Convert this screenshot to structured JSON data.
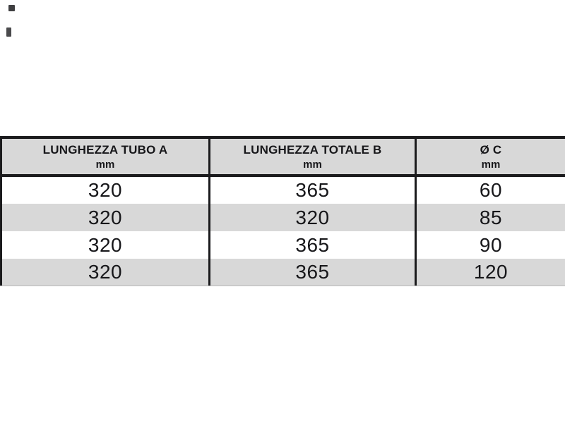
{
  "table": {
    "columns": [
      {
        "title": "LUNGHEZZA TUBO A",
        "unit": "mm"
      },
      {
        "title": "LUNGHEZZA TOTALE B",
        "unit": "mm"
      },
      {
        "title": "Ø C",
        "unit": "mm"
      }
    ],
    "rows": [
      [
        "320",
        "365",
        "60"
      ],
      [
        "320",
        "320",
        "85"
      ],
      [
        "320",
        "365",
        "90"
      ],
      [
        "320",
        "365",
        "120"
      ]
    ]
  },
  "colors": {
    "header_bg": "#d8d8d8",
    "stripe_bg": "#d8d8d8",
    "row_bg": "#ffffff",
    "border": "#1b1b1d",
    "text": "#17171a"
  }
}
